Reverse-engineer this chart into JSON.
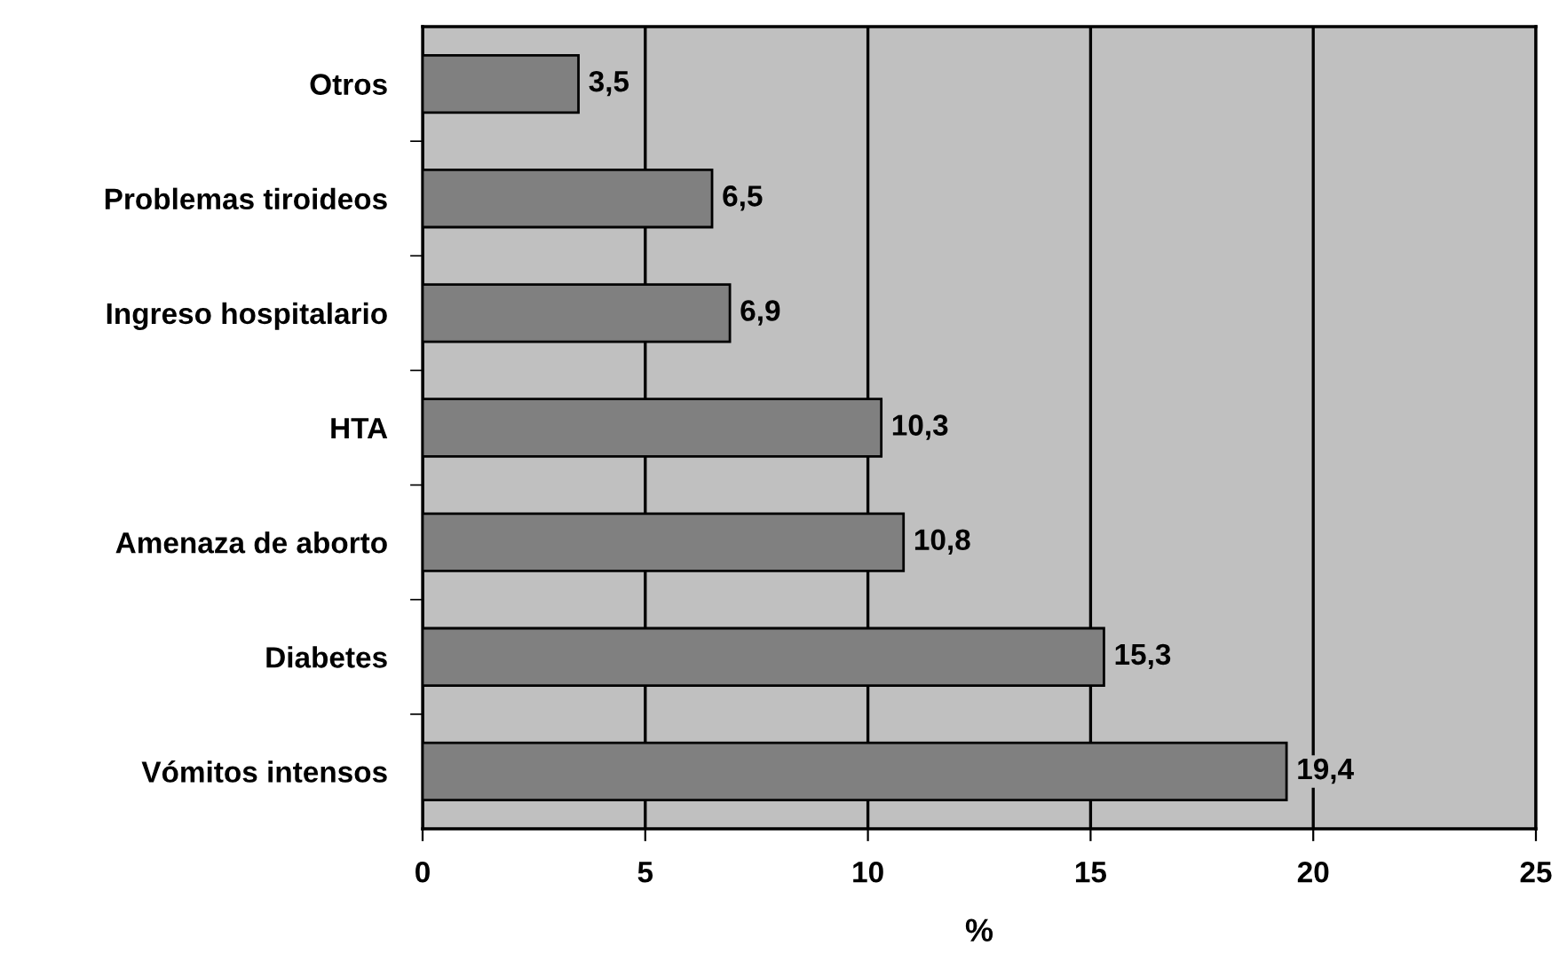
{
  "chart_data": {
    "type": "bar",
    "orientation": "horizontal",
    "categories": [
      "Otros",
      "Problemas tiroideos",
      "Ingreso hospitalario",
      "HTA",
      "Amenaza de aborto",
      "Diabetes",
      "Vómitos intensos"
    ],
    "values": [
      3.5,
      6.5,
      6.9,
      10.3,
      10.8,
      15.3,
      19.4
    ],
    "value_labels": [
      "3,5",
      "6,5",
      "6,9",
      "10,3",
      "10,8",
      "15,3",
      "19,4"
    ],
    "color": "#808080",
    "xlabel": "%",
    "xlim": [
      0,
      25
    ],
    "xticks": [
      0,
      5,
      10,
      15,
      20,
      25
    ],
    "grid": "x"
  }
}
